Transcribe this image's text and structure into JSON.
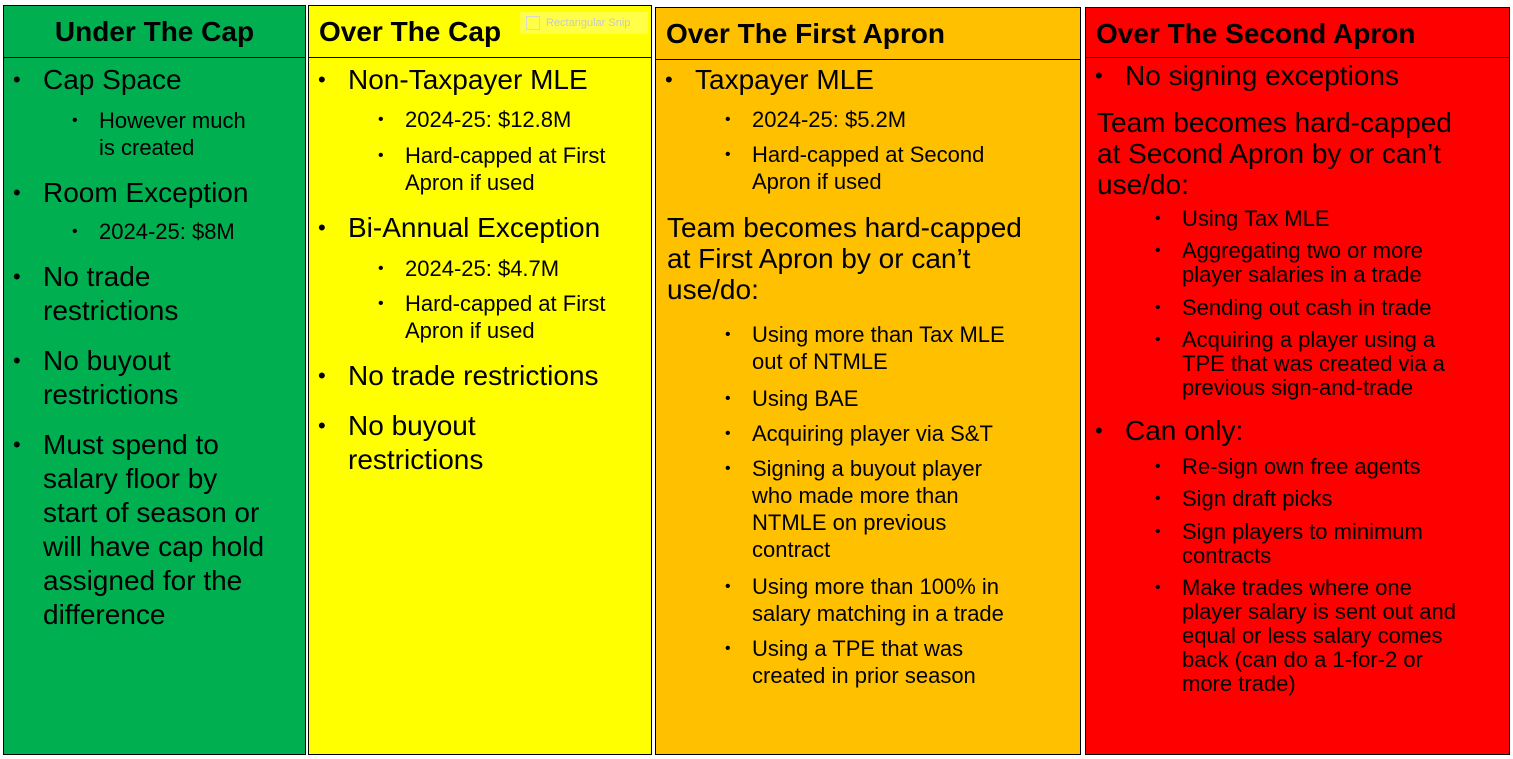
{
  "overlay": {
    "snip_label": "Rectangular Snip"
  },
  "columns": {
    "under_cap": {
      "title": "Under The Cap",
      "bg": "#00b050",
      "cap_space": "Cap Space",
      "cap_space_sub": [
        "However much",
        "is created"
      ],
      "room_exception": "Room Exception",
      "room_exception_sub": "2024-25: $8M",
      "no_trade": [
        "No trade",
        "restrictions"
      ],
      "no_buyout": [
        "No buyout",
        "restrictions"
      ],
      "salary_floor": [
        "Must spend to",
        "salary floor by",
        "start of season or",
        "will have cap hold",
        "assigned for the",
        "difference"
      ]
    },
    "over_cap": {
      "title": "Over The Cap",
      "bg": "#ffff00",
      "ntmle": "Non-Taxpayer MLE",
      "ntmle_sub1": "2024-25: $12.8M",
      "ntmle_sub2": [
        "Hard-capped at First",
        "Apron if used"
      ],
      "bae": "Bi-Annual Exception",
      "bae_sub1": "2024-25: $4.7M",
      "bae_sub2": [
        "Hard-capped at First",
        "Apron if used"
      ],
      "no_trade": "No trade restrictions",
      "no_buyout": [
        "No buyout",
        "restrictions"
      ]
    },
    "first_apron": {
      "title": "Over The First Apron",
      "bg": "#ffc000",
      "tmle": "Taxpayer MLE",
      "tmle_sub1": "2024-25: $5.2M",
      "tmle_sub2": [
        "Hard-capped at Second",
        "Apron if used"
      ],
      "hardcap_text": [
        "Team becomes hard-capped",
        "at First Apron by or can’t",
        "use/do:"
      ],
      "restrictions": [
        [
          "Using more than Tax MLE",
          "out of NTMLE"
        ],
        [
          "Using BAE"
        ],
        [
          "Acquiring player via S&T"
        ],
        [
          "Signing a buyout player",
          "who made more than",
          "NTMLE on previous",
          "contract"
        ],
        [
          "Using more than 100% in",
          "salary matching in a trade"
        ],
        [
          "Using a TPE that was",
          "created in prior season"
        ]
      ]
    },
    "second_apron": {
      "title": "Over The Second Apron",
      "bg": "#ff0000",
      "no_signing": "No signing exceptions",
      "hardcap_text": [
        "Team becomes hard-capped",
        "at Second Apron by or can’t",
        "use/do:"
      ],
      "restrictions": [
        [
          "Using Tax MLE"
        ],
        [
          "Aggregating two or more",
          "player salaries in a trade"
        ],
        [
          "Sending out cash in trade"
        ],
        [
          "Acquiring a player using a",
          "TPE that was created via a",
          "previous sign-and-trade"
        ]
      ],
      "can_only": "Can only:",
      "allowed": [
        [
          "Re-sign own free agents"
        ],
        [
          "Sign draft picks"
        ],
        [
          "Sign players to minimum",
          "contracts"
        ],
        [
          "Make trades where one",
          "player salary is sent out and",
          "equal or less salary comes",
          "back (can do a 1-for-2 or",
          "more trade)"
        ]
      ]
    }
  }
}
